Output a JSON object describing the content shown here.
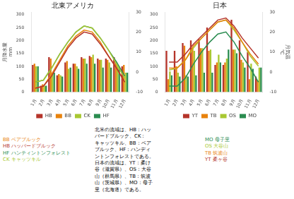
{
  "chart_data": [
    {
      "type": "bar",
      "title": "北東アメリカ",
      "categories": [
        "1月",
        "2月",
        "3月",
        "4月",
        "5月",
        "6月",
        "7月",
        "8月",
        "9月",
        "10月",
        "11月",
        "12月"
      ],
      "ylabel": "月降水量",
      "yunit": "mm",
      "ylim": [
        0,
        310
      ],
      "yticks": [
        0,
        50,
        100,
        150,
        200,
        250,
        300
      ],
      "y2lim": [
        -10,
        30
      ],
      "y2ticks": [
        -10,
        0,
        10,
        20,
        30
      ],
      "grid": false,
      "legend": "bottom",
      "series": [
        {
          "name": "HB",
          "color": "#b5342a",
          "type": "bar",
          "values": [
            105,
            25,
            135,
            65,
            115,
            110,
            135,
            140,
            130,
            130,
            135,
            100
          ]
        },
        {
          "name": "BB",
          "color": "#e8820c",
          "type": "bar",
          "values": [
            110,
            30,
            130,
            70,
            120,
            110,
            130,
            135,
            125,
            125,
            115,
            105
          ]
        },
        {
          "name": "CK",
          "color": "#a8c832",
          "type": "bar",
          "values": [
            100,
            25,
            75,
            65,
            90,
            100,
            130,
            145,
            125,
            115,
            105,
            75
          ]
        },
        {
          "name": "HF",
          "color": "#2a8c50",
          "type": "bar",
          "values": [
            100,
            25,
            75,
            60,
            95,
            90,
            110,
            110,
            95,
            95,
            95,
            75
          ]
        },
        {
          "name": "HB",
          "color": "#b5342a",
          "type": "line",
          "axis": "y2",
          "values": [
            -8,
            -7,
            -2,
            5,
            12,
            17,
            20,
            19,
            14,
            8,
            2,
            -5
          ]
        },
        {
          "name": "BB",
          "color": "#e8820c",
          "type": "line",
          "axis": "y2",
          "values": [
            -8,
            -7,
            -1,
            6,
            13,
            18,
            21,
            20,
            15,
            8,
            2,
            -5
          ]
        },
        {
          "name": "CK",
          "color": "#a8c832",
          "type": "line",
          "axis": "y2",
          "values": [
            -5,
            -4,
            2,
            9,
            15,
            20,
            23,
            22,
            17,
            11,
            4,
            -3
          ]
        },
        {
          "name": "HF",
          "color": "#2a8c50",
          "type": "line",
          "axis": "y2",
          "values": [
            -5,
            -4,
            2,
            9,
            15,
            20,
            23,
            22,
            17,
            11,
            5,
            -2
          ]
        }
      ],
      "annotations": [
        {
          "text": "BB ベアブルック",
          "color": "#e8820c"
        },
        {
          "text": "HB ハッバードブルック",
          "color": "#b5342a"
        },
        {
          "text": "HF ハンティントンフォレスト",
          "color": "#2a8c50"
        },
        {
          "text": "CK キャッツキル",
          "color": "#a8c832"
        },
        {
          "text": "北米の流域は、HB：ハッ\nバードブルック、CK：\nキャッツキル、BB：ベア\nブルック、HF：ハンディ\nントンフォレストである。\n日本の流域は、YT：柔け\n谷（滋賀県）、OS：大谷\n山（群馬県）、TB：筑波\n山（茨城県）、MO：母子\n里（北海道）である。"
        }
      ]
    },
    {
      "type": "bar",
      "title": "日本",
      "categories": [
        "1月",
        "2月",
        "3月",
        "4月",
        "5月",
        "6月",
        "7月",
        "8月",
        "9月",
        "10月",
        "11月",
        "12月"
      ],
      "y2label": "月気温",
      "y2unit": "℃",
      "ylim": [
        0,
        310
      ],
      "yticks": [
        0,
        50,
        100,
        150,
        200,
        250,
        300
      ],
      "y2lim": [
        -10,
        30
      ],
      "y2ticks": [
        -10,
        0,
        10,
        20,
        30
      ],
      "grid": false,
      "legend": "bottom",
      "series": [
        {
          "name": "YT",
          "color": "#b5342a",
          "type": "bar",
          "values": [
            160,
            160,
            190,
            200,
            205,
            250,
            105,
            105,
            280,
            200,
            155,
            60
          ]
        },
        {
          "name": "TB",
          "color": "#e8820c",
          "type": "bar",
          "values": [
            50,
            100,
            180,
            170,
            170,
            160,
            115,
            115,
            165,
            125,
            50,
            45
          ]
        },
        {
          "name": "OS",
          "color": "#a8c832",
          "type": "bar",
          "values": [
            80,
            75,
            65,
            160,
            170,
            165,
            145,
            130,
            165,
            115,
            110,
            95
          ]
        },
        {
          "name": "MO",
          "color": "#2a8c50",
          "type": "bar",
          "values": [
            65,
            60,
            60,
            65,
            75,
            75,
            115,
            165,
            150,
            95,
            90,
            95
          ]
        },
        {
          "name": "YT",
          "color": "#b5342a",
          "type": "line",
          "axis": "y2",
          "values": [
            5,
            5,
            9,
            14,
            18,
            22,
            26,
            27,
            23,
            17,
            12,
            7
          ]
        },
        {
          "name": "TB",
          "color": "#e8820c",
          "type": "line",
          "axis": "y2",
          "values": [
            2,
            2,
            6,
            13,
            17,
            21,
            25,
            26,
            22,
            15,
            9,
            4
          ]
        },
        {
          "name": "OS",
          "color": "#a8c832",
          "type": "line",
          "axis": "y2",
          "values": [
            1,
            2,
            6,
            12,
            17,
            21,
            25,
            26,
            21,
            15,
            8,
            3
          ]
        },
        {
          "name": "MO",
          "color": "#2a8c50",
          "type": "line",
          "axis": "y2",
          "values": [
            -7,
            -7,
            -3,
            4,
            10,
            15,
            19,
            20,
            15,
            8,
            2,
            -5
          ]
        }
      ],
      "annotations": [
        {
          "text": "MO 母子里",
          "color": "#2a8c50"
        },
        {
          "text": "OS 大谷山",
          "color": "#a8c832"
        },
        {
          "text": "TB 筑波山",
          "color": "#e8820c"
        },
        {
          "text": "YT 柔ヶ谷",
          "color": "#b5342a"
        }
      ]
    }
  ]
}
